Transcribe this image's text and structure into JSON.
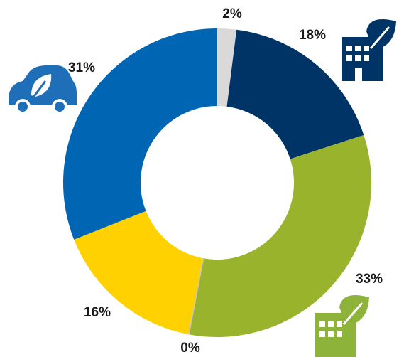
{
  "chart_data": {
    "type": "donut",
    "categories": [
      null,
      null,
      null,
      null,
      null,
      null
    ],
    "values": [
      2,
      18,
      33,
      0,
      16,
      31
    ],
    "value_labels": [
      "2%",
      "18%",
      "33%",
      "0%",
      "16%",
      "31%"
    ],
    "colors": [
      "#d9d9d9",
      "#003366",
      "#99b32c",
      "#c8c8c8",
      "#ffd100",
      "#0066b3"
    ]
  }
}
